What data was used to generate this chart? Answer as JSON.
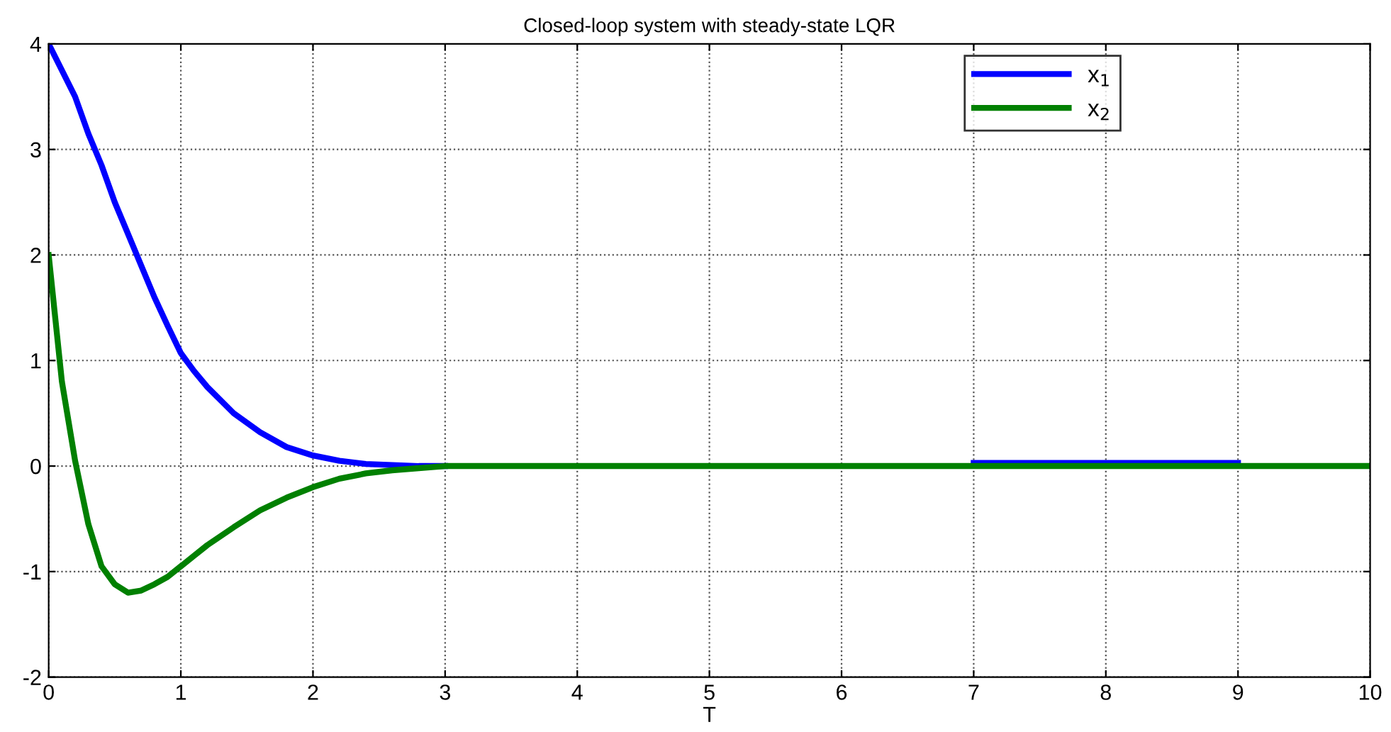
{
  "chart_data": {
    "type": "line",
    "title": "Closed-loop system with steady-state LQR",
    "xlabel": "T",
    "x": [
      0,
      0.1,
      0.2,
      0.3,
      0.4,
      0.5,
      0.6,
      0.7,
      0.8,
      0.9,
      1.0,
      1.1,
      1.2,
      1.4,
      1.6,
      1.8,
      2.0,
      2.2,
      2.4,
      2.6,
      2.8,
      3.0,
      4,
      5,
      6,
      7,
      8,
      9,
      10
    ],
    "series": [
      {
        "name": "x$_{1}$",
        "color": "#0000ff",
        "values": [
          4,
          3.75,
          3.5,
          3.15,
          2.85,
          2.5,
          2.2,
          1.9,
          1.6,
          1.33,
          1.07,
          0.9,
          0.75,
          0.5,
          0.32,
          0.18,
          0.1,
          0.05,
          0.02,
          0.01,
          0,
          0,
          null,
          null,
          null,
          0.03,
          0.03,
          0.03,
          null
        ]
      },
      {
        "name": "x$_{2}$",
        "color": "#008000",
        "values": [
          2,
          0.8,
          0.05,
          -0.55,
          -0.95,
          -1.12,
          -1.2,
          -1.18,
          -1.12,
          -1.05,
          -0.95,
          -0.85,
          -0.75,
          -0.58,
          -0.42,
          -0.3,
          -0.2,
          -0.12,
          -0.07,
          -0.04,
          -0.02,
          0,
          0,
          0,
          0,
          0,
          0,
          0,
          0
        ]
      }
    ],
    "xlim": [
      0,
      10
    ],
    "xticks": [
      0,
      1,
      2,
      3,
      4,
      5,
      6,
      7,
      8,
      9,
      10
    ],
    "ylim": [
      -2,
      4
    ],
    "yticks": [
      -2,
      -1,
      0,
      1,
      2,
      3,
      4
    ],
    "grid": true,
    "legend": "top right",
    "line_style": "solid",
    "marker": "none"
  }
}
